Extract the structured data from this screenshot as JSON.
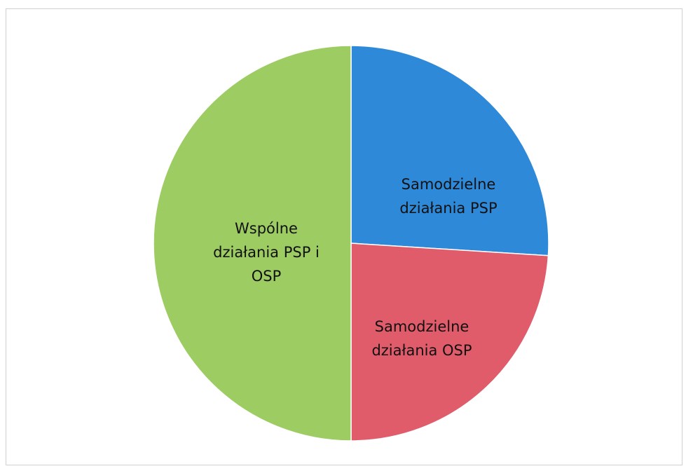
{
  "chart_data": {
    "type": "pie",
    "categories": [
      "Samodzielne działania PSP",
      "Samodzielne działania OSP",
      "Wspólne działania PSP i OSP"
    ],
    "values": [
      26,
      24,
      50
    ],
    "colors": [
      "#2f89d9",
      "#e05c6b",
      "#9dcc63"
    ]
  }
}
